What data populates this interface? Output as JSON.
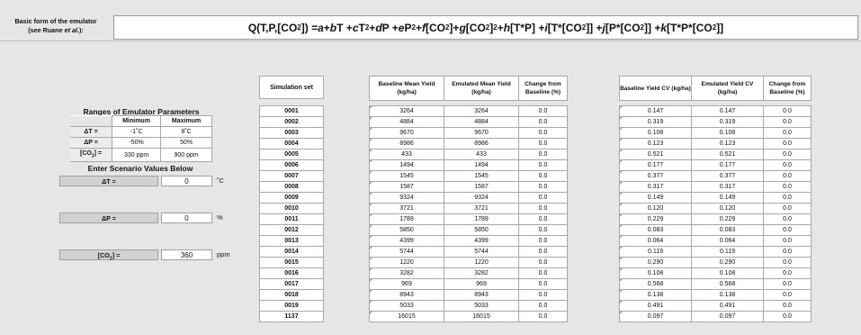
{
  "header": {
    "label_line1": "Basic form of the emulator",
    "label_line2_prefix": "(see Ruane ",
    "label_line2_em": "et al.",
    "label_line2_suffix": "):",
    "formula": {
      "p1": "Q(T,P,[CO",
      "s1": "2",
      "p2": "]) = ",
      "p3": "a",
      "p4": " + ",
      "p5": "b",
      "p6": "T + ",
      "p7": "c",
      "p8": "T",
      "sup1": "2",
      "p9": " + ",
      "p10": "d",
      "p11": "P + ",
      "p12": "e",
      "p13": "P",
      "sup2": "2",
      "p14": " + ",
      "p15": "f",
      "p16": "[CO",
      "s2": "2",
      "p17": "]+ ",
      "p18": "g",
      "p19": "[CO",
      "s3": "2",
      "p20": "]",
      "sup3": "2",
      "p21": " + ",
      "p22": "h",
      "p23": "[T*P] + ",
      "p24": "i",
      "p25": "[T*[CO",
      "s4": "2",
      "p26": "]] + ",
      "p27": "j",
      "p28": "[P*[CO",
      "s5": "2",
      "p29": "]] + ",
      "p30": "k",
      "p31": "[T*P*[CO",
      "s6": "2",
      "p32": "]]"
    }
  },
  "ranges": {
    "title": "Ranges of Emulator Parameters",
    "col_min": "Minimum",
    "col_max": "Maximum",
    "rows": [
      {
        "label": "ΔT =",
        "min": "-1˚C",
        "max": "8˚C"
      },
      {
        "label": "ΔP =",
        "min": "-50%",
        "max": "50%"
      },
      {
        "label_prefix": "[CO",
        "label_sub": "2",
        "label_suffix": "] =",
        "min": "330 ppm",
        "max": "900 ppm"
      }
    ]
  },
  "scenario": {
    "title": "Enter Scenario Values Below",
    "dt": {
      "label": "ΔT =",
      "value": "0",
      "unit": "˚C"
    },
    "dp": {
      "label": "ΔP =",
      "value": "0",
      "unit": "%"
    },
    "co2": {
      "label_prefix": "[CO",
      "label_sub": "2",
      "label_suffix": "] =",
      "value": "360",
      "unit": "ppm"
    }
  },
  "sim": {
    "header": "Simulation set",
    "sets": [
      "0001",
      "0002",
      "0003",
      "0004",
      "0005",
      "0006",
      "0007",
      "0008",
      "0009",
      "0010",
      "0011",
      "0012",
      "0013",
      "0014",
      "0015",
      "0016",
      "0017",
      "0018",
      "0019",
      "1137"
    ]
  },
  "yield_table": {
    "headers": [
      "Baseline Mean Yield (kg/ha)",
      "Emulated Mean Yield (kg/ha)",
      "Change from Baseline (%)"
    ],
    "rows": [
      [
        "3264",
        "3264",
        "0.0"
      ],
      [
        "4884",
        "4884",
        "0.0"
      ],
      [
        "9670",
        "9670",
        "0.0"
      ],
      [
        "8986",
        "8986",
        "0.0"
      ],
      [
        "433",
        "433",
        "0.0"
      ],
      [
        "1494",
        "1494",
        "0.0"
      ],
      [
        "1545",
        "1545",
        "0.0"
      ],
      [
        "1587",
        "1587",
        "0.0"
      ],
      [
        "9324",
        "9324",
        "0.0"
      ],
      [
        "3721",
        "3721",
        "0.0"
      ],
      [
        "1789",
        "1789",
        "0.0"
      ],
      [
        "5850",
        "5850",
        "0.0"
      ],
      [
        "4399",
        "4399",
        "0.0"
      ],
      [
        "5744",
        "5744",
        "0.0"
      ],
      [
        "1220",
        "1220",
        "0.0"
      ],
      [
        "3282",
        "3282",
        "0.0"
      ],
      [
        "969",
        "969",
        "0.0"
      ],
      [
        "8943",
        "8943",
        "0.0"
      ],
      [
        "5033",
        "5033",
        "0.0"
      ],
      [
        "16015",
        "16015",
        "0.0"
      ]
    ]
  },
  "cv_table": {
    "headers": [
      "Baseline Yield CV (kg/ha)",
      "Emulated Yield CV (kg/ha)",
      "Change from Baseline (%)"
    ],
    "rows": [
      [
        "0.147",
        "0.147",
        "0.0"
      ],
      [
        "0.319",
        "0.319",
        "0.0"
      ],
      [
        "0.108",
        "0.108",
        "0.0"
      ],
      [
        "0.123",
        "0.123",
        "0.0"
      ],
      [
        "0.521",
        "0.521",
        "0.0"
      ],
      [
        "0.177",
        "0.177",
        "0.0"
      ],
      [
        "0.377",
        "0.377",
        "0.0"
      ],
      [
        "0.317",
        "0.317",
        "0.0"
      ],
      [
        "0.149",
        "0.149",
        "0.0"
      ],
      [
        "0.120",
        "0.120",
        "0.0"
      ],
      [
        "0.229",
        "0.229",
        "0.0"
      ],
      [
        "0.083",
        "0.083",
        "0.0"
      ],
      [
        "0.064",
        "0.064",
        "0.0"
      ],
      [
        "0.119",
        "0.119",
        "0.0"
      ],
      [
        "0.290",
        "0.290",
        "0.0"
      ],
      [
        "0.108",
        "0.108",
        "0.0"
      ],
      [
        "0.568",
        "0.568",
        "0.0"
      ],
      [
        "0.138",
        "0.138",
        "0.0"
      ],
      [
        "0.491",
        "0.491",
        "0.0"
      ],
      [
        "0.097",
        "0.097",
        "0.0"
      ]
    ]
  }
}
